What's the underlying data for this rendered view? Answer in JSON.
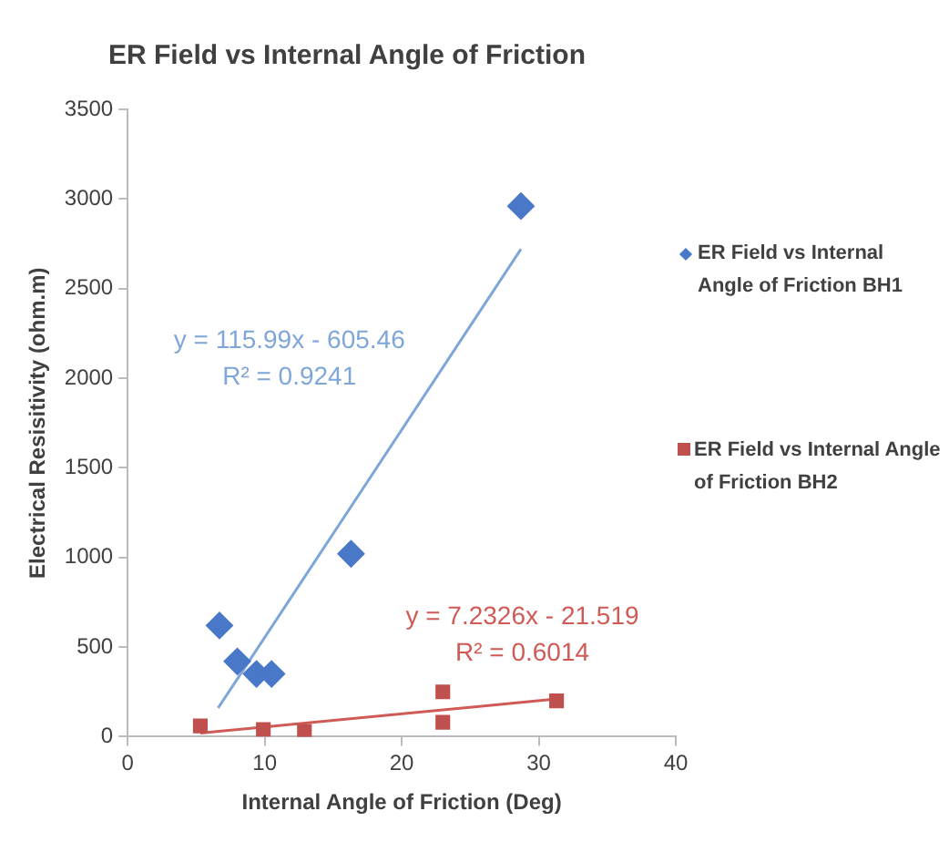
{
  "chart_data": {
    "type": "scatter",
    "title": "ER Field vs Internal Angle of Friction",
    "xlabel": "Internal Angle of Friction (Deg)",
    "ylabel": "Electrical Resisitivity (ohm.m)",
    "xlim": [
      0,
      40
    ],
    "xticks": [
      0,
      10,
      20,
      30,
      40
    ],
    "ylim": [
      0,
      3500
    ],
    "yticks": [
      0,
      500,
      1000,
      1500,
      2000,
      2500,
      3000,
      3500
    ],
    "grid": false,
    "legend": "right",
    "series": [
      {
        "name": "ER Field vs Internal Angle of Friction BH1",
        "color": "#4a78c8",
        "marker": "diamond",
        "x": [
          6.7,
          8.0,
          9.4,
          10.5,
          16.3,
          28.7
        ],
        "values": [
          620,
          420,
          350,
          350,
          1020,
          2960
        ]
      },
      {
        "name": "ER Field vs Internal Angle of Friction BH2",
        "color": "#c0504d",
        "marker": "square",
        "x": [
          5.3,
          9.9,
          12.9,
          23.0,
          23.0,
          31.3
        ],
        "values": [
          60,
          40,
          30,
          250,
          80,
          200
        ]
      },
      {
        "type": "line",
        "color": "#7fa6d8",
        "marker": "none",
        "x": [
          6.6,
          28.7
        ],
        "values": [
          160,
          2720
        ]
      },
      {
        "type": "line",
        "color": "#d05a55",
        "marker": "none",
        "x": [
          5.3,
          31.3
        ],
        "values": [
          20,
          210
        ]
      }
    ],
    "annotations": [
      "y = 115.99x - 605.46\nR² = 0.9241",
      "y = 7.2326x - 21.519\nR² = 0.6014"
    ]
  }
}
